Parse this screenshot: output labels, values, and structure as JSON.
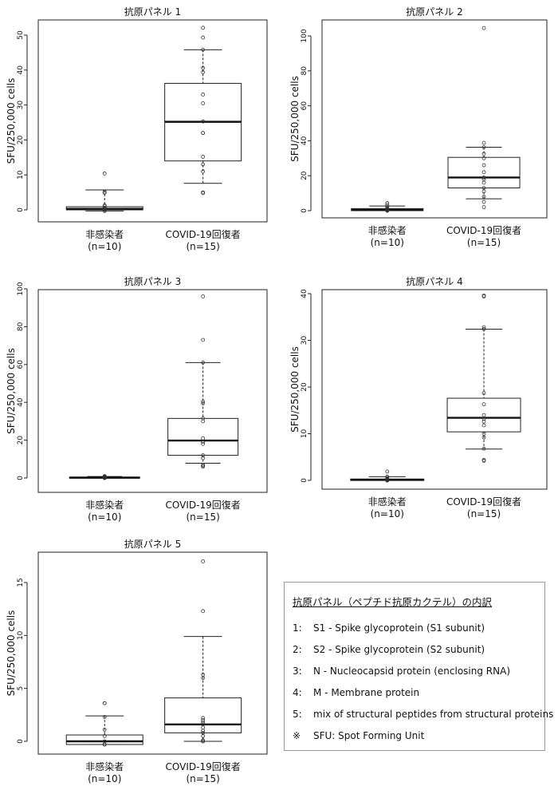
{
  "chart_data": [
    {
      "type": "box",
      "title": "抗原パネル 1",
      "ylabel": "SFU/250,000 cells",
      "ylim": [
        0,
        52
      ],
      "yticks": [
        0,
        10,
        20,
        30,
        40,
        50
      ],
      "categories": [
        {
          "lines": [
            "非感染者",
            "(n=10)"
          ],
          "whisker_low": -0.3,
          "q1": 0.0,
          "median": 0.3,
          "q3": 0.9,
          "whisker_high": 5.7,
          "points": [
            10.4,
            5.2,
            4.9,
            1.3,
            1.0,
            0.6,
            0.3,
            0.0,
            -0.3,
            -0.3
          ]
        },
        {
          "lines": [
            "COVID-19回復者",
            "(n=15)"
          ],
          "whisker_low": 7.6,
          "q1": 14.0,
          "median": 25.2,
          "q3": 36.2,
          "whisker_high": 45.8,
          "points": [
            52.1,
            49.3,
            45.8,
            40.6,
            39.4,
            33.0,
            30.5,
            25.3,
            22.0,
            22.0,
            15.2,
            13.0,
            11.0,
            5.0,
            4.8
          ]
        }
      ]
    },
    {
      "type": "box",
      "title": "抗原パネル 2",
      "ylabel": "SFU/250,000 cells",
      "ylim": [
        0,
        105
      ],
      "yticks": [
        0,
        20,
        40,
        60,
        80,
        100
      ],
      "categories": [
        {
          "lines": [
            "非感染者",
            "(n=10)"
          ],
          "whisker_low": 0.0,
          "q1": 0.0,
          "median": 0.5,
          "q3": 1.2,
          "whisker_high": 2.7,
          "points": [
            4.3,
            3.3,
            2.0,
            1.2,
            0.9,
            0.6,
            0.3,
            0.1,
            0.0,
            0.0
          ]
        },
        {
          "lines": [
            "COVID-19回復者",
            "(n=15)"
          ],
          "whisker_low": 6.8,
          "q1": 13.0,
          "median": 19.0,
          "q3": 30.5,
          "whisker_high": 36.3,
          "points": [
            104.5,
            38.8,
            36.3,
            32.5,
            30.0,
            26.0,
            22.0,
            19.0,
            18.0,
            16.0,
            13.0,
            11.0,
            8.0,
            5.0,
            2.0
          ]
        }
      ]
    },
    {
      "type": "box",
      "title": "抗原パネル 3",
      "ylabel": "SFU/250,000 cells",
      "ylim": [
        0,
        100
      ],
      "yticks": [
        0,
        20,
        40,
        60,
        80,
        100
      ],
      "categories": [
        {
          "lines": [
            "非感染者",
            "(n=10)"
          ],
          "whisker_low": 0.0,
          "q1": 0.0,
          "median": 0.2,
          "q3": 0.5,
          "whisker_high": 0.8,
          "points": [
            1.0,
            0.8,
            0.6,
            0.5,
            0.3,
            0.2,
            0.1,
            0.0,
            0.0,
            0.0
          ]
        },
        {
          "lines": [
            "COVID-19回復者",
            "(n=15)"
          ],
          "whisker_low": 7.8,
          "q1": 12.0,
          "median": 19.8,
          "q3": 31.5,
          "whisker_high": 61.0,
          "points": [
            96.0,
            73.0,
            61.0,
            40.5,
            39.5,
            31.5,
            30.0,
            21.0,
            19.0,
            18.0,
            12.0,
            10.5,
            7.0,
            6.5,
            6.0
          ]
        }
      ]
    },
    {
      "type": "box",
      "title": "抗原パネル 4",
      "ylabel": "SFU/250,000 cells",
      "ylim": [
        0,
        40
      ],
      "yticks": [
        0,
        10,
        20,
        30,
        40
      ],
      "categories": [
        {
          "lines": [
            "非感染者",
            "(n=10)"
          ],
          "whisker_low": 0.0,
          "q1": 0.0,
          "median": 0.1,
          "q3": 0.3,
          "whisker_high": 0.8,
          "points": [
            1.9,
            0.8,
            0.5,
            0.3,
            0.2,
            0.1,
            0.0,
            0.0,
            0.0,
            0.0
          ]
        },
        {
          "lines": [
            "COVID-19回復者",
            "(n=15)"
          ],
          "whisker_low": 6.7,
          "q1": 10.4,
          "median": 13.4,
          "q3": 17.6,
          "whisker_high": 32.4,
          "points": [
            39.6,
            39.4,
            32.8,
            32.4,
            18.7,
            16.3,
            14.0,
            13.2,
            12.6,
            11.8,
            10.0,
            9.2,
            6.8,
            4.4,
            4.2
          ]
        }
      ]
    },
    {
      "type": "box",
      "title": "抗原パネル 5",
      "ylabel": "SFU/250,000 cells",
      "ylim": [
        0,
        17
      ],
      "yticks": [
        0,
        5,
        10,
        15
      ],
      "categories": [
        {
          "lines": [
            "非感染者",
            "(n=10)"
          ],
          "whisker_low": -0.3,
          "q1": -0.3,
          "median": 0.0,
          "q3": 0.6,
          "whisker_high": 2.4,
          "points": [
            3.6,
            3.6,
            2.3,
            1.1,
            0.5,
            0.0,
            -0.3,
            -0.3,
            -0.3,
            -0.3
          ]
        },
        {
          "lines": [
            "COVID-19回復者",
            "(n=15)"
          ],
          "whisker_low": 0.0,
          "q1": 0.8,
          "median": 1.6,
          "q3": 4.1,
          "whisker_high": 9.9,
          "points": [
            17.0,
            12.3,
            6.3,
            6.0,
            2.2,
            2.0,
            1.8,
            1.6,
            1.3,
            1.0,
            0.8,
            0.5,
            0.1,
            0.0,
            0.0
          ]
        }
      ]
    }
  ],
  "legend": {
    "title": "抗原パネル（ペプチド抗原カクテル）の内訳",
    "rows": [
      {
        "num": "1:",
        "text": "S1 ‐ Spike glycoprotein (S1 subunit)"
      },
      {
        "num": "2:",
        "text": "S2 ‐ Spike glycoprotein (S2 subunit)"
      },
      {
        "num": "3:",
        "text": "N ‐ Nucleocapsid protein (enclosing RNA)"
      },
      {
        "num": "4:",
        "text": "M ‐ Membrane protein"
      },
      {
        "num": "5:",
        "text": "mix of structural peptides from structural proteins"
      },
      {
        "num": "※",
        "text": "SFU: Spot Forming Unit"
      }
    ]
  }
}
